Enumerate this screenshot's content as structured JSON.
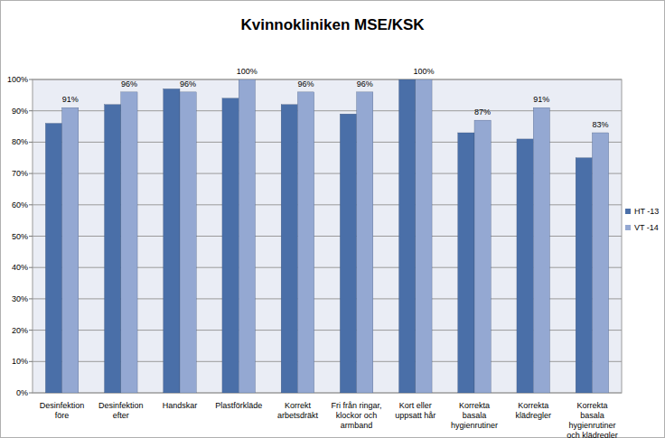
{
  "chart_data": {
    "type": "bar",
    "title": "Kvinnokliniken MSE/KSK",
    "categories": [
      "Desinfektion före",
      "Desinfektion efter",
      "Handskar",
      "Plastförkläde",
      "Korrekt arbetsdräkt",
      "Fri från ringar, klockor och armband",
      "Kort eller uppsatt hår",
      "Korrekta basala hygienrutiner",
      "Korrekta klädregler",
      "Korrekta basala hygienrutiner och klädregler"
    ],
    "series": [
      {
        "name": "HT -13",
        "color": "#4a6fa8",
        "values": [
          86,
          92,
          97,
          94,
          92,
          89,
          100,
          83,
          81,
          75
        ]
      },
      {
        "name": "VT -14",
        "color": "#94a8d2",
        "data_labels": true,
        "values": [
          91,
          96,
          96,
          100,
          96,
          96,
          100,
          87,
          91,
          83
        ],
        "value_labels": [
          "91%",
          "96%",
          "96%",
          "100%",
          "96%",
          "96%",
          "100%",
          "87%",
          "91%",
          "83%"
        ]
      }
    ],
    "ylim": [
      0,
      100
    ],
    "yticks": [
      {
        "value": 0,
        "label": "0%"
      },
      {
        "value": 10,
        "label": "10%"
      },
      {
        "value": 20,
        "label": "20%"
      },
      {
        "value": 30,
        "label": "30%"
      },
      {
        "value": 40,
        "label": "40%"
      },
      {
        "value": 50,
        "label": "50%"
      },
      {
        "value": 60,
        "label": "60%"
      },
      {
        "value": 70,
        "label": "70%"
      },
      {
        "value": 80,
        "label": "80%"
      },
      {
        "value": 90,
        "label": "90%"
      },
      {
        "value": 100,
        "label": "100%"
      }
    ],
    "grid": true,
    "legend": "right"
  }
}
